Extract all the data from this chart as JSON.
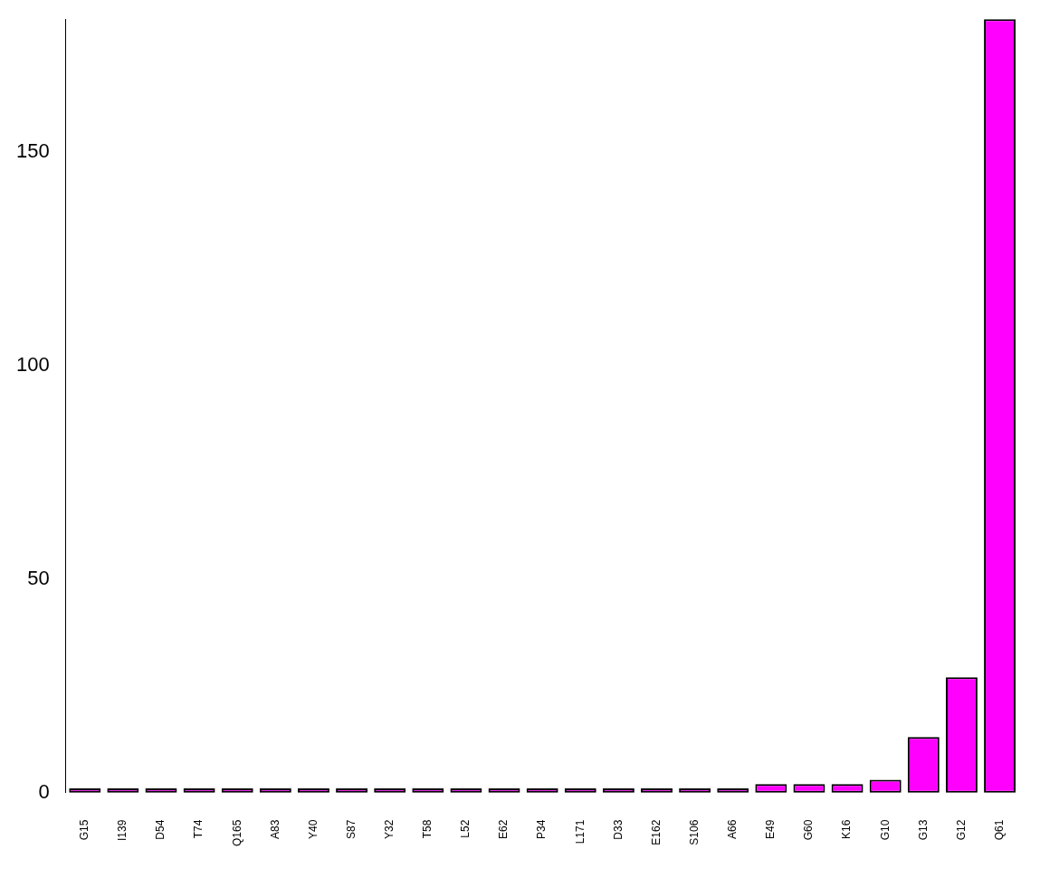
{
  "chart_data": {
    "type": "bar",
    "categories": [
      "G15",
      "I139",
      "D54",
      "T74",
      "Q165",
      "A83",
      "Y40",
      "S87",
      "Y32",
      "T58",
      "L52",
      "E62",
      "P34",
      "L171",
      "D33",
      "E162",
      "S106",
      "A66",
      "E49",
      "G60",
      "K16",
      "G10",
      "G13",
      "G12",
      "Q61"
    ],
    "values": [
      1,
      1,
      1,
      1,
      1,
      1,
      1,
      1,
      1,
      1,
      1,
      1,
      1,
      1,
      1,
      1,
      1,
      1,
      2,
      2,
      2,
      3,
      13,
      27,
      181
    ],
    "color": "#ff00ff",
    "ylim": [
      0,
      181
    ],
    "yticks": [
      0,
      50,
      100,
      150
    ],
    "grid": false,
    "legend": false
  }
}
